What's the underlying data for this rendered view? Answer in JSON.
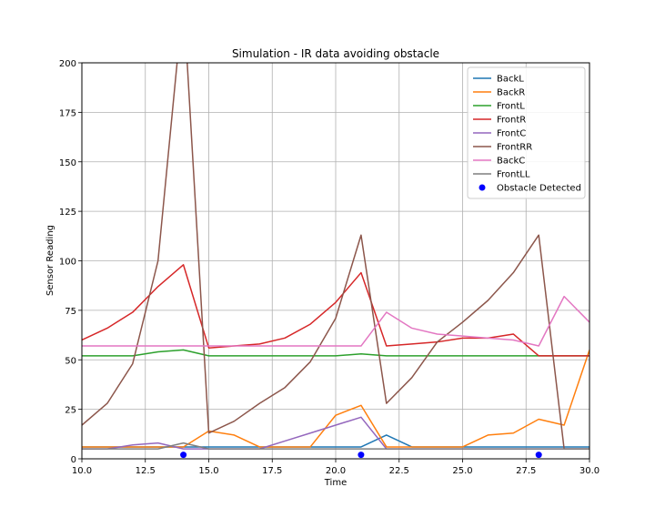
{
  "chart_data": {
    "type": "line",
    "title": "Simulation - IR data avoiding obstacle",
    "xlabel": "Time",
    "ylabel": "Sensor Reading",
    "xlim": [
      10,
      30
    ],
    "ylim": [
      0,
      200
    ],
    "xticks": [
      10,
      12.5,
      15,
      17.5,
      20,
      22.5,
      25,
      27.5,
      30
    ],
    "xtick_labels": [
      "10.0",
      "12.5",
      "15.0",
      "17.5",
      "20.0",
      "22.5",
      "25.0",
      "27.5",
      "30.0"
    ],
    "yticks": [
      0,
      25,
      50,
      75,
      100,
      125,
      150,
      175,
      200
    ],
    "ytick_labels": [
      "0",
      "25",
      "50",
      "75",
      "100",
      "125",
      "150",
      "175",
      "200"
    ],
    "grid": true,
    "legend_position": "top-right",
    "x": [
      10,
      11,
      12,
      13,
      14,
      15,
      16,
      17,
      18,
      19,
      20,
      21,
      22,
      23,
      24,
      25,
      26,
      27,
      28,
      29,
      30
    ],
    "series": [
      {
        "name": "BackL",
        "color": "#1f77b4",
        "values": [
          6,
          6,
          6,
          6,
          6,
          6,
          6,
          6,
          6,
          6,
          6,
          6,
          12,
          6,
          6,
          6,
          6,
          6,
          6,
          6,
          6
        ]
      },
      {
        "name": "BackR",
        "color": "#ff7f0e",
        "values": [
          6,
          6,
          6,
          6,
          6,
          14,
          12,
          6,
          6,
          6,
          22,
          27,
          6,
          6,
          6,
          6,
          12,
          13,
          20,
          17,
          55
        ]
      },
      {
        "name": "FrontL",
        "color": "#2ca02c",
        "values": [
          52,
          52,
          52,
          54,
          55,
          52,
          52,
          52,
          52,
          52,
          52,
          53,
          52,
          52,
          52,
          52,
          52,
          52,
          52,
          52,
          52
        ]
      },
      {
        "name": "FrontR",
        "color": "#d62728",
        "values": [
          60,
          66,
          74,
          87,
          98,
          56,
          57,
          58,
          61,
          68,
          79,
          94,
          57,
          58,
          59,
          61,
          61,
          63,
          52,
          52,
          52
        ]
      },
      {
        "name": "FrontC",
        "color": "#9467bd",
        "values": [
          5,
          5,
          7,
          8,
          5,
          5,
          5,
          5,
          9,
          13,
          17,
          21,
          5,
          5,
          5,
          5,
          5,
          5,
          5,
          5,
          5
        ]
      },
      {
        "name": "FrontRR",
        "color": "#8c564b",
        "values": [
          17,
          28,
          48,
          100,
          233,
          13,
          19,
          28,
          36,
          49,
          71,
          113,
          28,
          41,
          59,
          69,
          80,
          94,
          113,
          5,
          5
        ]
      },
      {
        "name": "BackC",
        "color": "#e377c2",
        "values": [
          57,
          57,
          57,
          57,
          57,
          57,
          57,
          57,
          57,
          57,
          57,
          57,
          74,
          66,
          63,
          62,
          61,
          60,
          57,
          82,
          69
        ]
      },
      {
        "name": "FrontLL",
        "color": "#7f7f7f",
        "values": [
          5,
          5,
          5,
          5,
          8,
          5,
          5,
          5,
          5,
          5,
          5,
          5,
          5,
          5,
          5,
          5,
          5,
          5,
          5,
          5,
          5
        ]
      }
    ],
    "scatter": {
      "name": "Obstacle Detected",
      "color": "#0000ff",
      "x": [
        14,
        21,
        28
      ],
      "y": [
        2,
        2,
        2
      ]
    }
  }
}
